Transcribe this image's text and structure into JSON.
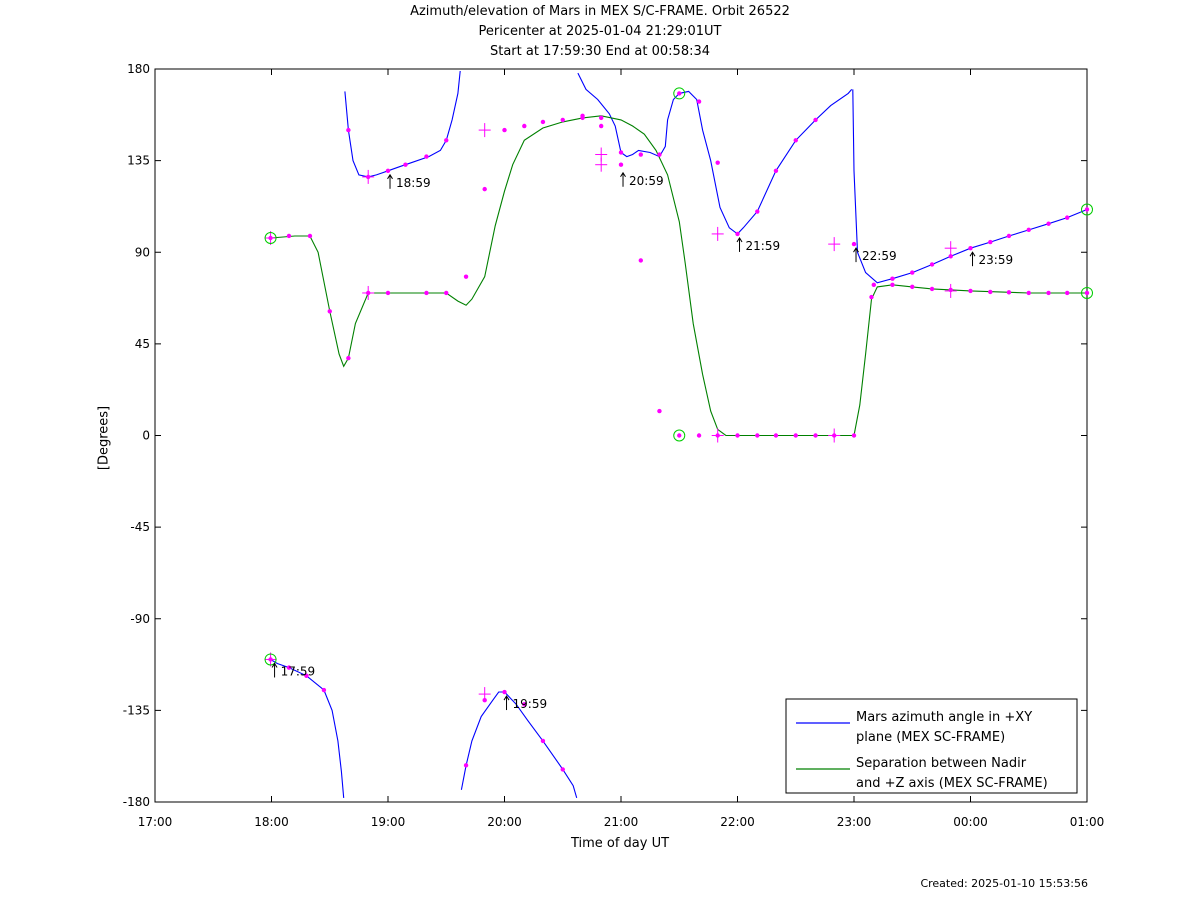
{
  "header": {
    "title_line1": "Azimuth/elevation of Mars in MEX S/C-FRAME.  Orbit 26522",
    "title_line2": "Pericenter at 2025-01-04 21:29:01UT",
    "title_line3": "Start at 17:59:30 End at 00:58:34"
  },
  "footer": {
    "created": "Created: 2025-01-10 15:53:56"
  },
  "colors": {
    "azimuth": "#0000ff",
    "separation": "#008000",
    "marker": "#ff00ff",
    "circle": "#00cc00"
  },
  "chart_data": {
    "type": "line",
    "title": "Azimuth/elevation of Mars in MEX S/C-FRAME.  Orbit 26522",
    "xlabel": "Time of day UT",
    "ylabel": "[Degrees]",
    "x_unit": "hours since 17:00 UT",
    "xlim": [
      0,
      8
    ],
    "ylim": [
      -180,
      180
    ],
    "grid": false,
    "legend_position": "bottom-right",
    "x_ticks": [
      "17:00",
      "18:00",
      "19:00",
      "20:00",
      "21:00",
      "22:00",
      "23:00",
      "00:00",
      "01:00"
    ],
    "y_ticks": [
      "180",
      "135",
      "90",
      "45",
      "0",
      "-45",
      "-90",
      "-135",
      "-180"
    ],
    "series": [
      {
        "name": "Mars azimuth angle in +XY plane (MEX SC-FRAME)",
        "legend_line1": "Mars azimuth angle in +XY",
        "legend_line2": "plane (MEX SC-FRAME)",
        "color": "#0000ff",
        "segments": [
          [
            [
              0.992,
              -110
            ],
            [
              1.05,
              -112
            ],
            [
              1.15,
              -114
            ],
            [
              1.3,
              -118
            ],
            [
              1.45,
              -125
            ],
            [
              1.52,
              -135
            ],
            [
              1.57,
              -150
            ],
            [
              1.6,
              -165
            ],
            [
              1.62,
              -178
            ]
          ],
          [
            [
              1.63,
              169
            ],
            [
              1.66,
              150
            ],
            [
              1.7,
              135
            ],
            [
              1.75,
              128
            ],
            [
              1.83,
              127
            ],
            [
              1.9,
              128
            ],
            [
              2.0,
              130
            ],
            [
              2.1,
              132
            ],
            [
              2.2,
              134
            ],
            [
              2.35,
              137
            ],
            [
              2.45,
              140
            ],
            [
              2.5,
              145
            ],
            [
              2.55,
              155
            ],
            [
              2.6,
              168
            ],
            [
              2.62,
              179
            ]
          ],
          [
            [
              2.63,
              -174
            ],
            [
              2.67,
              -162
            ],
            [
              2.72,
              -150
            ],
            [
              2.8,
              -138
            ],
            [
              2.9,
              -130
            ],
            [
              2.95,
              -126
            ],
            [
              3.0,
              -126
            ],
            [
              3.1,
              -132
            ],
            [
              3.2,
              -140
            ],
            [
              3.33,
              -150
            ],
            [
              3.5,
              -164
            ],
            [
              3.59,
              -172
            ],
            [
              3.62,
              -178
            ]
          ],
          [
            [
              3.63,
              178
            ],
            [
              3.7,
              170
            ],
            [
              3.8,
              165
            ],
            [
              3.9,
              158
            ],
            [
              3.95,
              152
            ],
            [
              4.0,
              139
            ],
            [
              4.05,
              137
            ],
            [
              4.1,
              138
            ],
            [
              4.15,
              140
            ],
            [
              4.25,
              139
            ],
            [
              4.33,
              137
            ],
            [
              4.38,
              142
            ],
            [
              4.4,
              155
            ],
            [
              4.45,
              165
            ],
            [
              4.5,
              168
            ],
            [
              4.58,
              169
            ],
            [
              4.65,
              165
            ],
            [
              4.7,
              150
            ],
            [
              4.77,
              135
            ],
            [
              4.85,
              112
            ],
            [
              4.93,
              102
            ],
            [
              5.0,
              99
            ],
            [
              5.05,
              102
            ],
            [
              5.17,
              110
            ],
            [
              5.33,
              130
            ],
            [
              5.5,
              145
            ],
            [
              5.67,
              155
            ],
            [
              5.8,
              162
            ],
            [
              5.95,
              168
            ],
            [
              5.98,
              170
            ]
          ],
          [
            [
              5.99,
              170
            ],
            [
              6.0,
              130
            ],
            [
              6.03,
              90
            ],
            [
              6.1,
              80
            ],
            [
              6.2,
              75
            ],
            [
              6.33,
              77
            ],
            [
              6.5,
              80
            ],
            [
              6.67,
              84
            ],
            [
              6.83,
              88
            ],
            [
              7.0,
              92
            ],
            [
              7.17,
              95
            ],
            [
              7.33,
              98
            ],
            [
              7.5,
              101
            ],
            [
              7.67,
              104
            ],
            [
              7.83,
              107
            ],
            [
              8.0,
              111
            ]
          ]
        ]
      },
      {
        "name": "Separation between Nadir and +Z axis (MEX SC-FRAME)",
        "legend_line1": "Separation between Nadir",
        "legend_line2": "and +Z axis (MEX SC-FRAME)",
        "color": "#008000",
        "segments": [
          [
            [
              0.992,
              97
            ],
            [
              1.1,
              97.5
            ],
            [
              1.2,
              98
            ],
            [
              1.33,
              98
            ],
            [
              1.4,
              90
            ],
            [
              1.5,
              61
            ],
            [
              1.58,
              40
            ],
            [
              1.62,
              34
            ],
            [
              1.66,
              38
            ],
            [
              1.72,
              55
            ],
            [
              1.83,
              70
            ],
            [
              2.0,
              70
            ],
            [
              2.25,
              70
            ],
            [
              2.5,
              70
            ],
            [
              2.6,
              66
            ],
            [
              2.67,
              64
            ],
            [
              2.72,
              67
            ],
            [
              2.83,
              78
            ],
            [
              2.92,
              103
            ],
            [
              3.0,
              120
            ],
            [
              3.07,
              133
            ],
            [
              3.17,
              145
            ],
            [
              3.33,
              151
            ],
            [
              3.5,
              154
            ],
            [
              3.67,
              156
            ],
            [
              3.83,
              157
            ],
            [
              4.0,
              155
            ],
            [
              4.1,
              152
            ],
            [
              4.2,
              148
            ],
            [
              4.3,
              140
            ],
            [
              4.4,
              128
            ],
            [
              4.5,
              105
            ],
            [
              4.55,
              85
            ],
            [
              4.62,
              55
            ],
            [
              4.7,
              30
            ],
            [
              4.77,
              12
            ],
            [
              4.83,
              3
            ],
            [
              4.9,
              0
            ],
            [
              5.0,
              0
            ],
            [
              5.33,
              0
            ],
            [
              5.67,
              0
            ],
            [
              6.0,
              0
            ],
            [
              6.05,
              15
            ],
            [
              6.1,
              40
            ],
            [
              6.15,
              67
            ],
            [
              6.2,
              73
            ],
            [
              6.33,
              74
            ],
            [
              6.5,
              73
            ],
            [
              6.67,
              72
            ],
            [
              7.0,
              71
            ],
            [
              7.5,
              70
            ],
            [
              8.0,
              70
            ]
          ]
        ]
      }
    ],
    "markers": [
      [
        0.992,
        -110
      ],
      [
        1.15,
        -114
      ],
      [
        1.3,
        -118
      ],
      [
        1.45,
        -125
      ],
      [
        1.66,
        150
      ],
      [
        1.83,
        127
      ],
      [
        2.0,
        130
      ],
      [
        2.15,
        133
      ],
      [
        2.33,
        137
      ],
      [
        2.5,
        145
      ],
      [
        2.5,
        70
      ],
      [
        2.33,
        70
      ],
      [
        2.0,
        70
      ],
      [
        1.83,
        70
      ],
      [
        1.5,
        61
      ],
      [
        1.66,
        38
      ],
      [
        1.33,
        98
      ],
      [
        1.15,
        98
      ],
      [
        0.992,
        97
      ],
      [
        2.67,
        -162
      ],
      [
        2.83,
        -130
      ],
      [
        3.0,
        -126
      ],
      [
        3.17,
        -132
      ],
      [
        3.33,
        -150
      ],
      [
        3.5,
        -164
      ],
      [
        2.67,
        78
      ],
      [
        2.83,
        121
      ],
      [
        3.0,
        150
      ],
      [
        3.17,
        152
      ],
      [
        3.33,
        154
      ],
      [
        3.5,
        155
      ],
      [
        3.67,
        156
      ],
      [
        3.83,
        156
      ],
      [
        4.0,
        139
      ],
      [
        4.17,
        138
      ],
      [
        4.33,
        138
      ],
      [
        4.5,
        168
      ],
      [
        4.67,
        164
      ],
      [
        4.83,
        134
      ],
      [
        5.0,
        99
      ],
      [
        5.17,
        110
      ],
      [
        5.33,
        130
      ],
      [
        5.5,
        145
      ],
      [
        5.67,
        155
      ],
      [
        6.0,
        94
      ],
      [
        6.17,
        74
      ],
      [
        6.33,
        77
      ],
      [
        6.5,
        80
      ],
      [
        6.67,
        84
      ],
      [
        6.83,
        88
      ],
      [
        7.0,
        92
      ],
      [
        7.17,
        95
      ],
      [
        7.33,
        98
      ],
      [
        7.5,
        101
      ],
      [
        7.67,
        104
      ],
      [
        7.83,
        107
      ],
      [
        8.0,
        111
      ],
      [
        3.67,
        157
      ],
      [
        3.83,
        152
      ],
      [
        4.0,
        133
      ],
      [
        4.17,
        86
      ],
      [
        4.33,
        12
      ],
      [
        4.5,
        0
      ],
      [
        4.67,
        0
      ],
      [
        4.83,
        0
      ],
      [
        5.0,
        0
      ],
      [
        5.17,
        0
      ],
      [
        5.33,
        0
      ],
      [
        5.5,
        0
      ],
      [
        5.67,
        0
      ],
      [
        5.83,
        0
      ],
      [
        6.0,
        0
      ],
      [
        6.15,
        68
      ],
      [
        6.33,
        74
      ],
      [
        6.5,
        73
      ],
      [
        6.67,
        72
      ],
      [
        6.83,
        71.5
      ],
      [
        7.0,
        71
      ],
      [
        7.17,
        70.5
      ],
      [
        7.33,
        70.3
      ],
      [
        7.5,
        70
      ],
      [
        7.67,
        70
      ],
      [
        7.83,
        70
      ],
      [
        8.0,
        70
      ]
    ],
    "hour_markers": [
      [
        0.992,
        -110
      ],
      [
        0.992,
        97
      ],
      [
        1.83,
        127
      ],
      [
        1.83,
        70
      ],
      [
        2.83,
        -127
      ],
      [
        2.83,
        150
      ],
      [
        3.83,
        138
      ],
      [
        3.83,
        133
      ],
      [
        4.83,
        99
      ],
      [
        4.83,
        0
      ],
      [
        5.83,
        94
      ],
      [
        5.83,
        0
      ],
      [
        6.83,
        92
      ],
      [
        6.83,
        71
      ]
    ],
    "circle_markers": [
      [
        0.992,
        -110
      ],
      [
        0.992,
        97
      ],
      [
        4.5,
        168
      ],
      [
        4.5,
        0
      ],
      [
        8.0,
        111
      ],
      [
        8.0,
        70
      ]
    ],
    "annotations": [
      {
        "label": "17:59",
        "x": 0.992,
        "y": -110
      },
      {
        "label": "18:59",
        "x": 1.983,
        "y": 130
      },
      {
        "label": "19:59",
        "x": 2.983,
        "y": -126
      },
      {
        "label": "20:59",
        "x": 3.983,
        "y": 131
      },
      {
        "label": "21:59",
        "x": 4.983,
        "y": 99
      },
      {
        "label": "22:59",
        "x": 5.983,
        "y": 94
      },
      {
        "label": "23:59",
        "x": 6.983,
        "y": 92
      }
    ]
  }
}
